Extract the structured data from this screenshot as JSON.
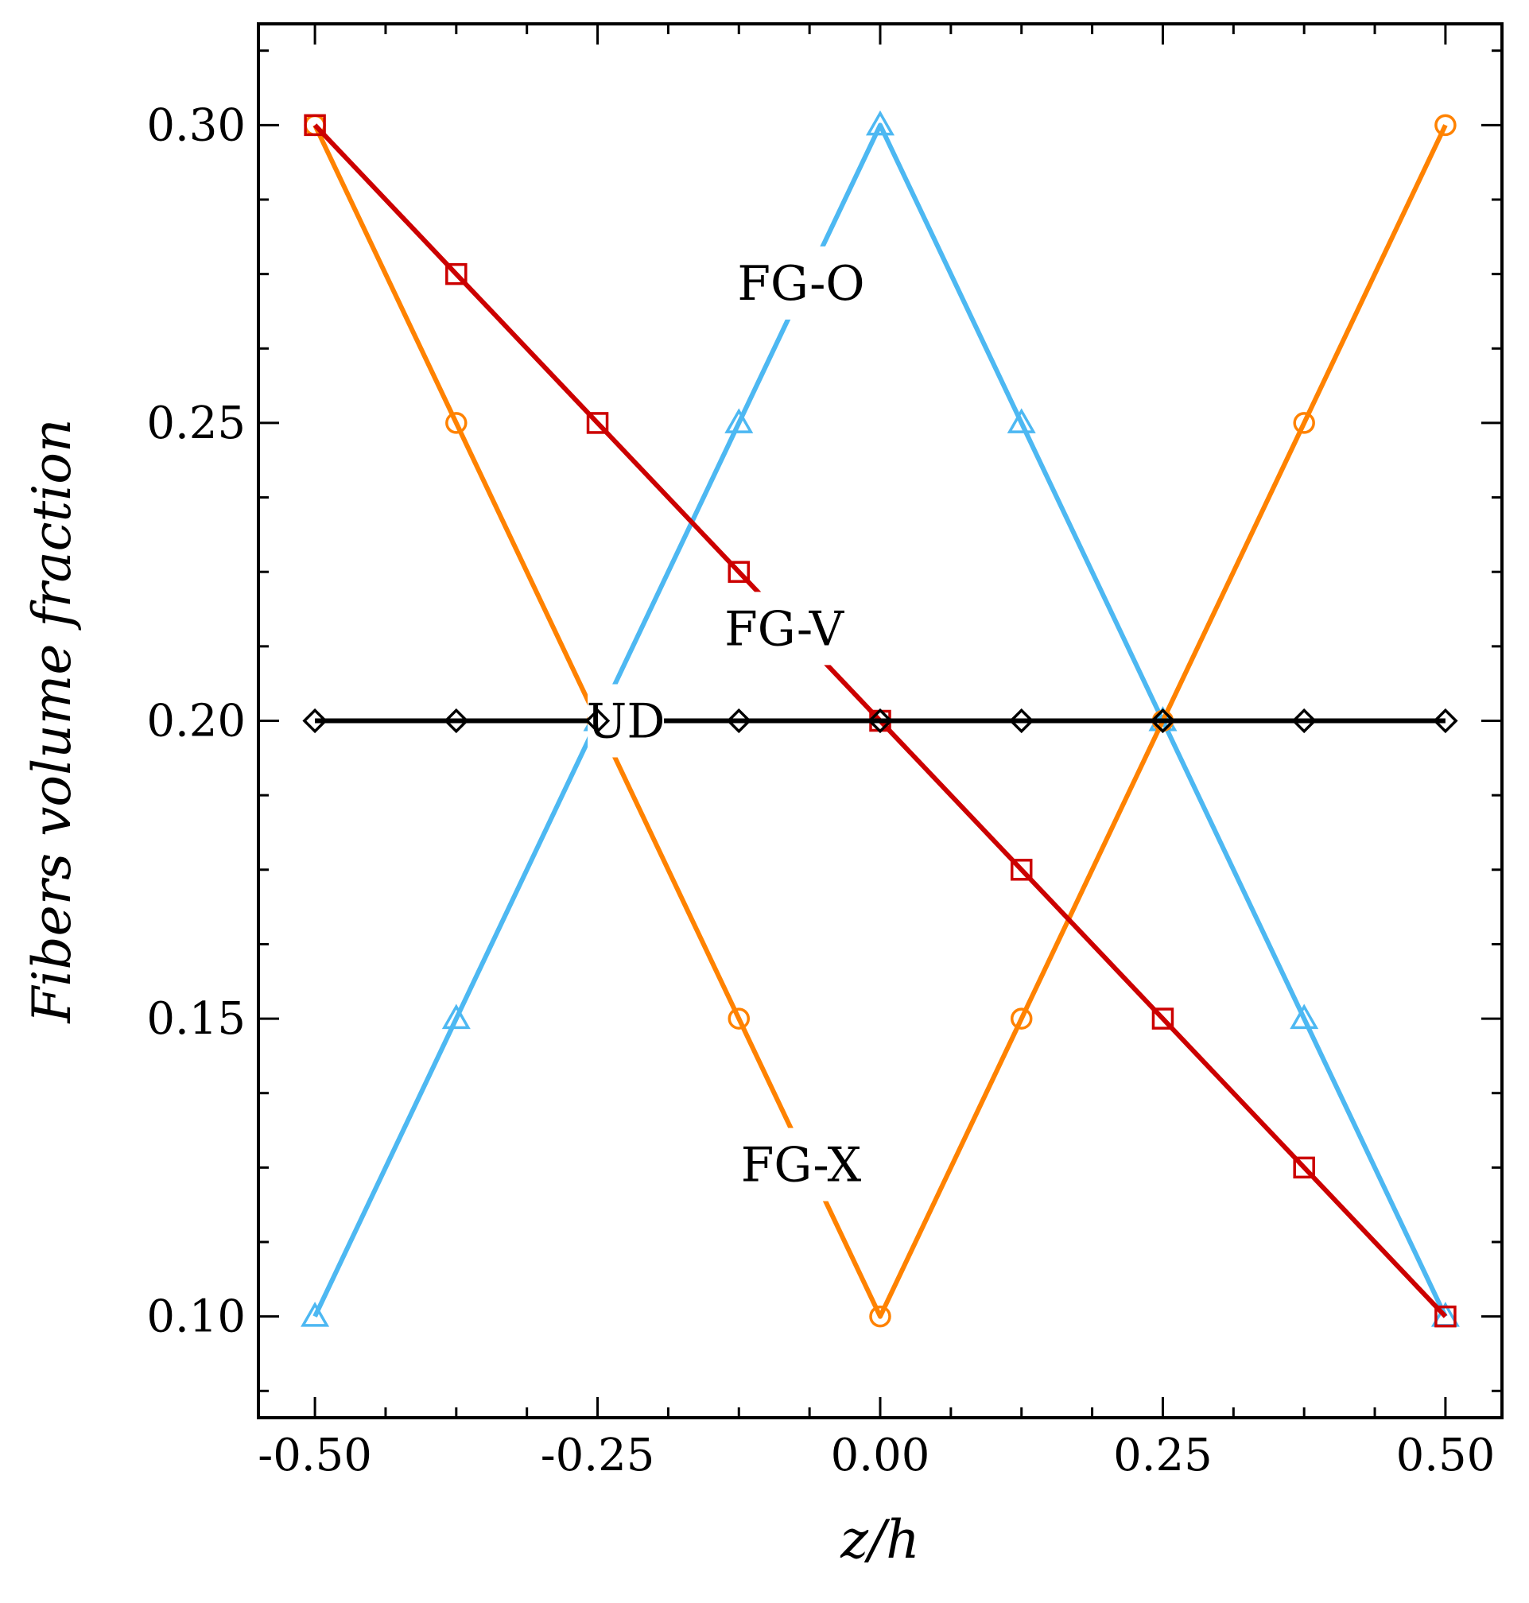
{
  "chart_data": {
    "type": "line",
    "title": "",
    "xlabel": "z/h",
    "ylabel": "Fibers volume fraction",
    "xlim": [
      -0.55,
      0.55
    ],
    "ylim": [
      0.083,
      0.317
    ],
    "xticks": [
      -0.5,
      -0.25,
      0.0,
      0.25,
      0.5
    ],
    "xtick_labels": [
      "-0.50",
      "-0.25",
      "0.00",
      "0.25",
      "0.50"
    ],
    "yticks": [
      0.1,
      0.15,
      0.2,
      0.25,
      0.3
    ],
    "ytick_labels": [
      "0.10",
      "0.15",
      "0.20",
      "0.25",
      "0.30"
    ],
    "x": [
      -0.5,
      -0.375,
      -0.25,
      -0.125,
      0.0,
      0.125,
      0.25,
      0.375,
      0.5
    ],
    "series": [
      {
        "name": "UD",
        "color": "#000000",
        "marker": "diamond",
        "values": [
          0.2,
          0.2,
          0.2,
          0.2,
          0.2,
          0.2,
          0.2,
          0.2,
          0.2
        ],
        "label_at": [
          -0.225,
          0.2
        ]
      },
      {
        "name": "FG-O",
        "color": "#4db8f2",
        "marker": "triangle",
        "values": [
          0.1,
          0.15,
          0.2,
          0.25,
          0.3,
          0.25,
          0.2,
          0.15,
          0.1
        ],
        "label_at": [
          -0.07,
          0.2735
        ]
      },
      {
        "name": "FG-V",
        "color": "#cc0000",
        "marker": "square",
        "values": [
          0.3,
          0.275,
          0.25,
          0.225,
          0.2,
          0.175,
          0.15,
          0.125,
          0.1
        ],
        "label_at": [
          -0.085,
          0.2155
        ]
      },
      {
        "name": "FG-X",
        "color": "#ff8200",
        "marker": "circle",
        "values": [
          0.3,
          0.25,
          0.2,
          0.15,
          0.1,
          0.15,
          0.2,
          0.25,
          0.3
        ],
        "label_at": [
          -0.07,
          0.1255
        ]
      }
    ],
    "grid": false,
    "legend": "inline labels"
  }
}
